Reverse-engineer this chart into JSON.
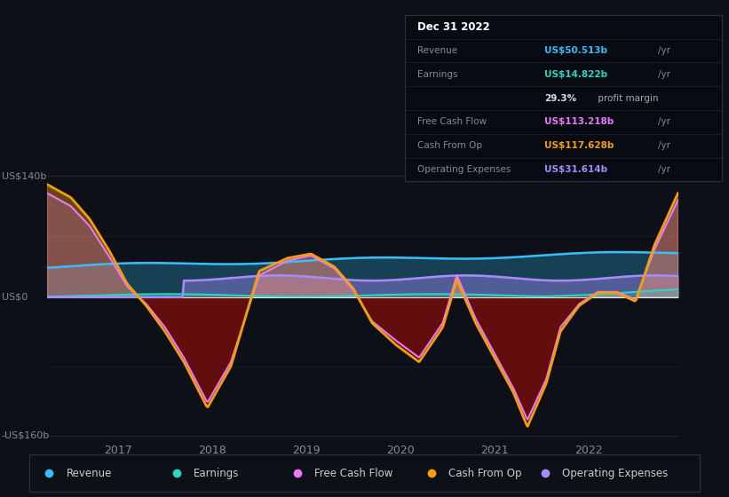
{
  "bg_color": "#0d1117",
  "plot_bg_color": "#111827",
  "x_ticks": [
    2017,
    2018,
    2019,
    2020,
    2021,
    2022
  ],
  "x_range": [
    2016.25,
    2022.95
  ],
  "y_range": [
    -165,
    148
  ],
  "legend": [
    {
      "label": "Revenue",
      "color": "#38bdf8"
    },
    {
      "label": "Earnings",
      "color": "#2dd4bf"
    },
    {
      "label": "Free Cash Flow",
      "color": "#e879f9"
    },
    {
      "label": "Cash From Op",
      "color": "#f59e0b"
    },
    {
      "label": "Operating Expenses",
      "color": "#a78bfa"
    }
  ],
  "tooltip_rows": [
    {
      "label": "Revenue",
      "value": "US$50.513b",
      "unit": "/yr",
      "color": "#38bdf8"
    },
    {
      "label": "Earnings",
      "value": "US$14.822b",
      "unit": "/yr",
      "color": "#2dd4bf"
    },
    {
      "label": "",
      "value": "29.3%",
      "unit": " profit margin",
      "color": "#ffffff"
    },
    {
      "label": "Free Cash Flow",
      "value": "US$113.218b",
      "unit": "/yr",
      "color": "#e879f9"
    },
    {
      "label": "Cash From Op",
      "value": "US$117.628b",
      "unit": "/yr",
      "color": "#f59e0b"
    },
    {
      "label": "Operating Expenses",
      "value": "US$31.614b",
      "unit": "/yr",
      "color": "#a78bfa"
    }
  ]
}
